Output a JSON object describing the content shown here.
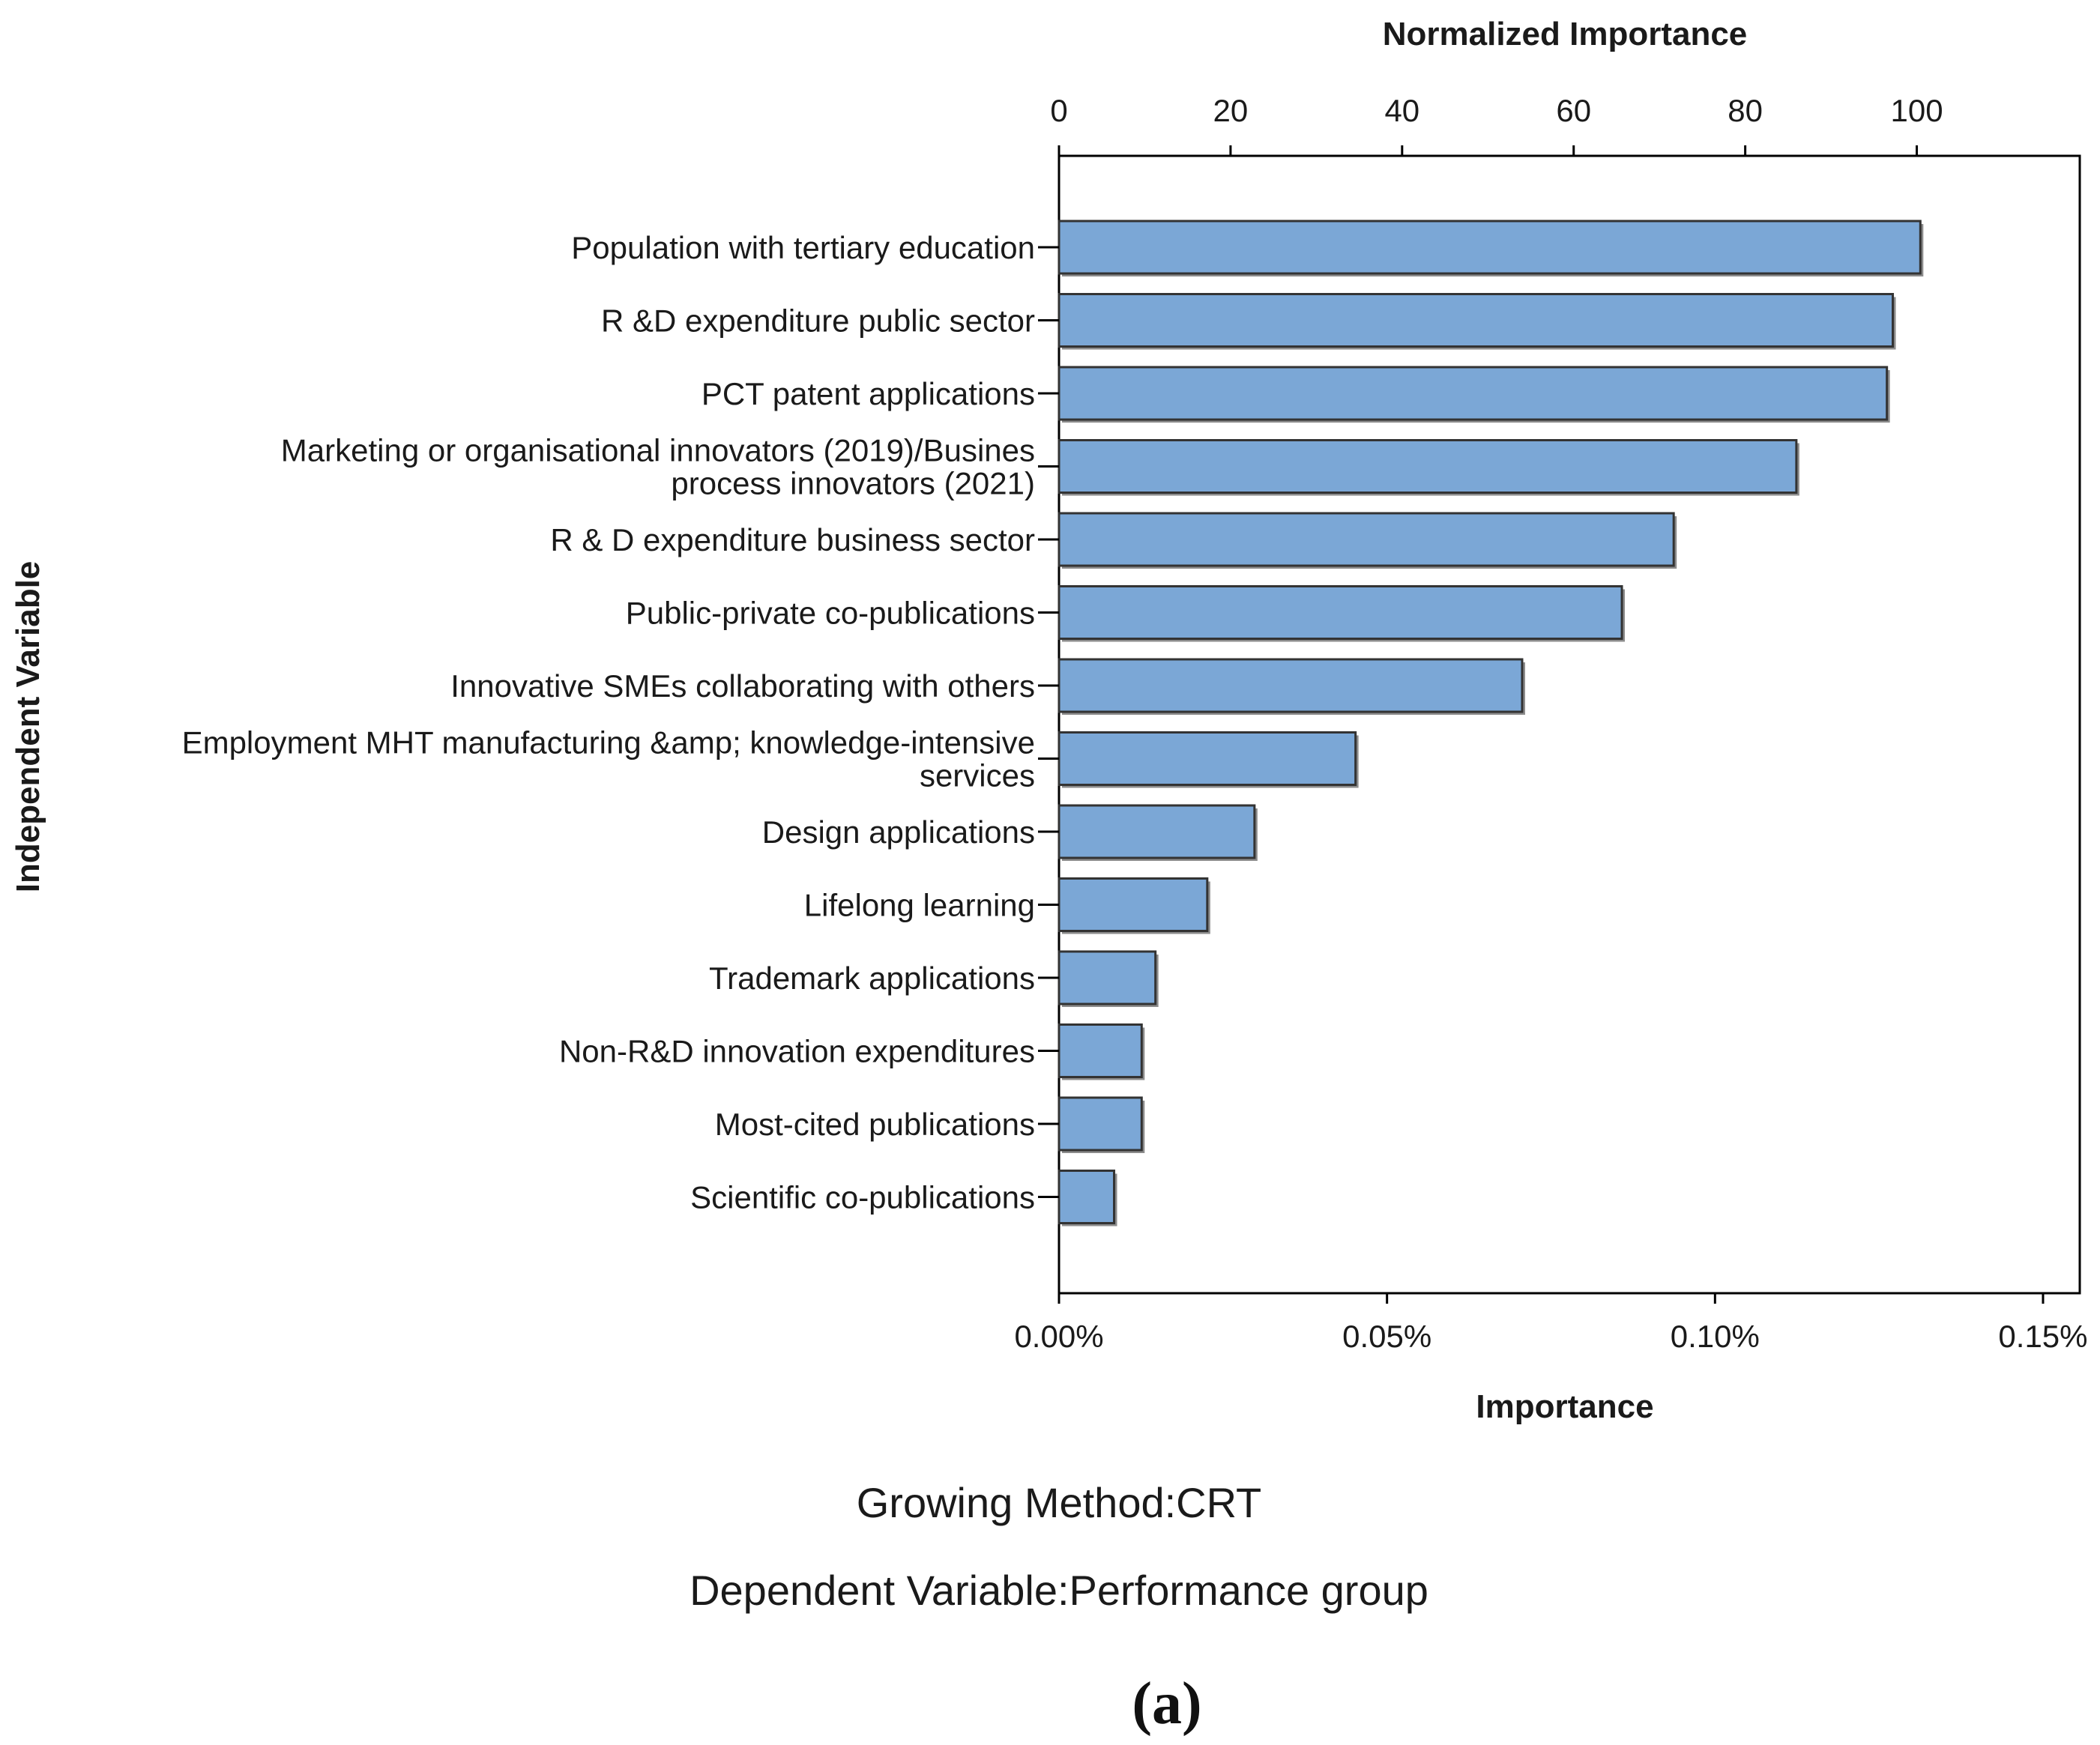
{
  "chart_data": {
    "type": "bar",
    "orientation": "horizontal",
    "top_axis_title": "Normalized Importance",
    "bottom_axis_title": "Importance",
    "y_axis_title": "Independent Variable",
    "top_ticks": [
      "0",
      "20",
      "40",
      "60",
      "80",
      "100"
    ],
    "top_range": [
      0,
      119
    ],
    "bottom_ticks": [
      "0.00%",
      "0.05%",
      "0.10%",
      "0.15%"
    ],
    "bottom_tick_values": [
      0,
      0.05,
      0.1,
      0.15
    ],
    "xlim": [
      0,
      0.1556
    ],
    "categories": [
      [
        "Population with tertiary education"
      ],
      [
        "R &D expenditure public sector"
      ],
      [
        "PCT patent applications"
      ],
      [
        "Marketing or organisational innovators (2019)/Busines",
        "process innovators (2021)"
      ],
      [
        "R & D expenditure business sector"
      ],
      [
        "Public-private co-publications"
      ],
      [
        "Innovative SMEs collaborating with others"
      ],
      [
        "Employment MHT manufacturing &amp; knowledge-intensive",
        "services"
      ],
      [
        "Design applications"
      ],
      [
        "Lifelong learning"
      ],
      [
        "Trademark applications"
      ],
      [
        "Non-R&D innovation expenditures"
      ],
      [
        "Most-cited publications"
      ],
      [
        "Scientific co-publications"
      ]
    ],
    "values": [
      0.1313,
      0.1271,
      0.1262,
      0.1124,
      0.0937,
      0.0858,
      0.0706,
      0.0452,
      0.0298,
      0.0226,
      0.0147,
      0.0126,
      0.0126,
      0.0084
    ],
    "bar_color": "#7ba7d6",
    "bar_stroke": "#333333"
  },
  "footnotes": {
    "growing_method": "Growing Method:CRT",
    "dependent_variable": "Dependent Variable:Performance group"
  },
  "caption": "(a)"
}
